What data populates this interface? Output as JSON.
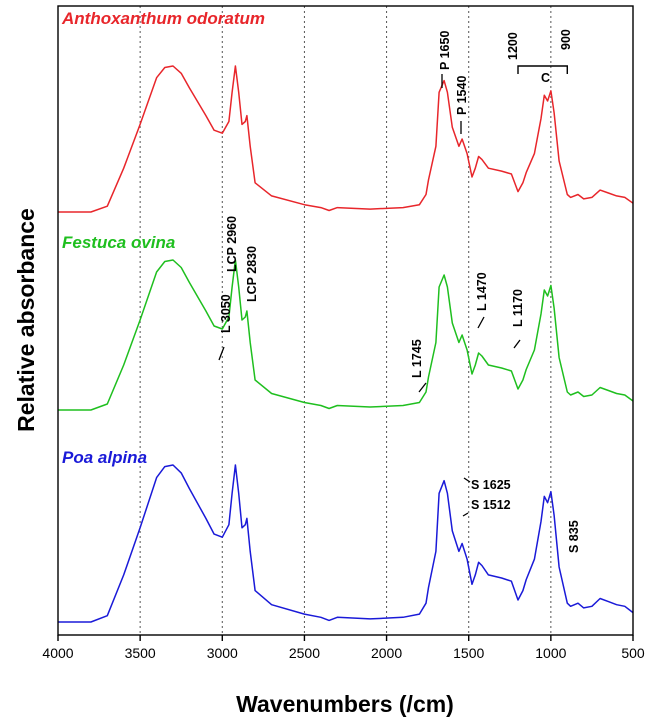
{
  "chart_data": {
    "type": "line",
    "xlabel": "Wavenumbers (/cm)",
    "ylabel": "Relative absorbance",
    "xlim": [
      4000,
      500
    ],
    "x_reversed": true,
    "x_ticks": [
      4000,
      3500,
      3000,
      2500,
      2000,
      1500,
      1000,
      500
    ],
    "grid": "vertical dotted at 3500, 3000, 2500, 2000, 1500, 1000",
    "y_axis": "unlabeled relative absorbance, spectra vertically offset",
    "series": [
      {
        "name": "Anthoxanthum odoratum",
        "color": "#e8262b",
        "x": [
          3800,
          3700,
          3600,
          3500,
          3400,
          3350,
          3300,
          3250,
          3200,
          3100,
          3050,
          3000,
          2960,
          2940,
          2920,
          2900,
          2880,
          2860,
          2850,
          2830,
          2800,
          2700,
          2500,
          2400,
          2350,
          2300,
          2100,
          1900,
          1800,
          1760,
          1745,
          1700,
          1680,
          1650,
          1630,
          1600,
          1560,
          1540,
          1510,
          1480,
          1460,
          1440,
          1420,
          1380,
          1300,
          1240,
          1200,
          1170,
          1150,
          1100,
          1060,
          1040,
          1020,
          1000,
          980,
          950,
          900,
          880,
          835,
          800,
          750,
          700,
          650,
          600,
          550,
          500
        ],
        "y": [
          0.0,
          0.04,
          0.3,
          0.6,
          0.92,
          0.99,
          1.0,
          0.95,
          0.85,
          0.66,
          0.56,
          0.54,
          0.62,
          0.82,
          1.0,
          0.82,
          0.6,
          0.62,
          0.66,
          0.45,
          0.2,
          0.11,
          0.05,
          0.03,
          0.01,
          0.03,
          0.02,
          0.03,
          0.05,
          0.12,
          0.22,
          0.45,
          0.82,
          0.9,
          0.82,
          0.58,
          0.45,
          0.5,
          0.4,
          0.24,
          0.3,
          0.38,
          0.36,
          0.3,
          0.28,
          0.26,
          0.14,
          0.2,
          0.27,
          0.4,
          0.64,
          0.8,
          0.76,
          0.83,
          0.68,
          0.35,
          0.12,
          0.1,
          0.12,
          0.09,
          0.1,
          0.15,
          0.13,
          0.11,
          0.1,
          0.06
        ]
      },
      {
        "name": "Festuca ovina",
        "color": "#1fbf1f",
        "x": [
          3800,
          3700,
          3600,
          3500,
          3400,
          3350,
          3300,
          3250,
          3200,
          3100,
          3050,
          3000,
          2960,
          2940,
          2920,
          2900,
          2880,
          2860,
          2850,
          2830,
          2800,
          2700,
          2500,
          2400,
          2350,
          2300,
          2100,
          1900,
          1800,
          1760,
          1745,
          1700,
          1680,
          1650,
          1630,
          1600,
          1560,
          1540,
          1510,
          1480,
          1460,
          1440,
          1420,
          1380,
          1300,
          1240,
          1200,
          1170,
          1150,
          1100,
          1060,
          1040,
          1020,
          1000,
          980,
          950,
          900,
          880,
          835,
          800,
          750,
          700,
          650,
          600,
          550,
          500
        ],
        "y": [
          0.0,
          0.04,
          0.3,
          0.6,
          0.92,
          0.99,
          1.0,
          0.95,
          0.85,
          0.66,
          0.56,
          0.54,
          0.62,
          0.82,
          1.0,
          0.82,
          0.6,
          0.62,
          0.66,
          0.45,
          0.2,
          0.11,
          0.05,
          0.03,
          0.01,
          0.03,
          0.02,
          0.03,
          0.05,
          0.12,
          0.22,
          0.45,
          0.82,
          0.9,
          0.82,
          0.58,
          0.45,
          0.5,
          0.4,
          0.24,
          0.3,
          0.38,
          0.36,
          0.3,
          0.28,
          0.26,
          0.14,
          0.2,
          0.27,
          0.4,
          0.64,
          0.8,
          0.76,
          0.83,
          0.68,
          0.35,
          0.12,
          0.1,
          0.12,
          0.09,
          0.1,
          0.15,
          0.13,
          0.11,
          0.1,
          0.06
        ]
      },
      {
        "name": "Poa alpina",
        "color": "#1a1ad8",
        "x": [
          3800,
          3700,
          3600,
          3500,
          3400,
          3350,
          3300,
          3250,
          3200,
          3100,
          3050,
          3000,
          2960,
          2940,
          2920,
          2900,
          2880,
          2860,
          2850,
          2830,
          2800,
          2700,
          2500,
          2400,
          2350,
          2300,
          2100,
          1900,
          1800,
          1760,
          1745,
          1700,
          1680,
          1650,
          1630,
          1600,
          1560,
          1540,
          1510,
          1480,
          1460,
          1440,
          1420,
          1380,
          1300,
          1240,
          1200,
          1170,
          1150,
          1100,
          1060,
          1040,
          1020,
          1000,
          980,
          950,
          900,
          880,
          835,
          800,
          750,
          700,
          650,
          600,
          550,
          500
        ],
        "y": [
          0.0,
          0.04,
          0.3,
          0.6,
          0.92,
          0.99,
          1.0,
          0.95,
          0.85,
          0.66,
          0.56,
          0.54,
          0.62,
          0.82,
          1.0,
          0.82,
          0.6,
          0.62,
          0.66,
          0.45,
          0.2,
          0.11,
          0.05,
          0.03,
          0.01,
          0.03,
          0.02,
          0.03,
          0.05,
          0.12,
          0.22,
          0.45,
          0.82,
          0.9,
          0.82,
          0.58,
          0.45,
          0.5,
          0.4,
          0.24,
          0.3,
          0.38,
          0.36,
          0.3,
          0.28,
          0.26,
          0.14,
          0.2,
          0.27,
          0.4,
          0.64,
          0.8,
          0.76,
          0.83,
          0.68,
          0.35,
          0.12,
          0.1,
          0.12,
          0.09,
          0.1,
          0.15,
          0.13,
          0.11,
          0.1,
          0.06
        ]
      }
    ],
    "annotations": [
      {
        "text": "P 1650",
        "series": "Anthoxanthum odoratum",
        "x": 1650
      },
      {
        "text": "P 1540",
        "series": "Anthoxanthum odoratum",
        "x": 1540
      },
      {
        "text": "1200",
        "x": 1200
      },
      {
        "text": "900",
        "x": 900
      },
      {
        "text": "C",
        "x": 1050
      },
      {
        "text": "L 3050",
        "series": "Festuca ovina",
        "x": 3050
      },
      {
        "text": "LCP 2960",
        "series": "Festuca ovina",
        "x": 2960
      },
      {
        "text": "LCP 2830",
        "series": "Festuca ovina",
        "x": 2830
      },
      {
        "text": "L 1745",
        "series": "Festuca ovina",
        "x": 1745
      },
      {
        "text": "L 1470",
        "series": "Festuca ovina",
        "x": 1470
      },
      {
        "text": "L 1170",
        "series": "Festuca ovina",
        "x": 1170
      },
      {
        "text": "S 1625",
        "series": "Poa alpina",
        "x": 1625
      },
      {
        "text": "S 1512",
        "series": "Poa alpina",
        "x": 1512
      },
      {
        "text": "S 835",
        "series": "Poa alpina",
        "x": 835
      }
    ]
  }
}
